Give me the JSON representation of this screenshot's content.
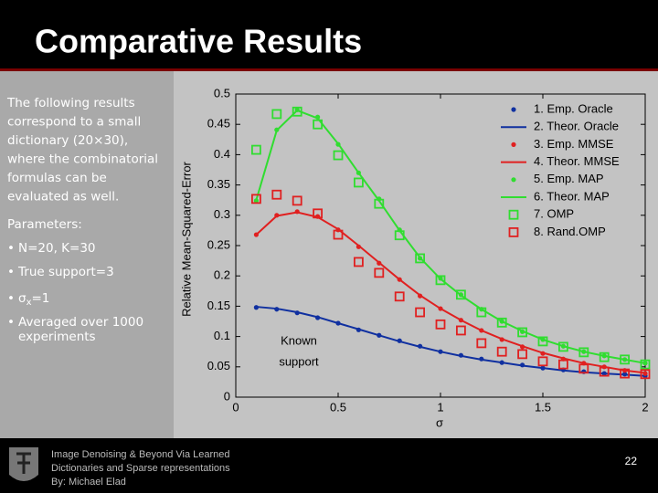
{
  "header": {
    "title": "Comparative Results"
  },
  "intro": {
    "lines": [
      "The following results",
      "correspond to a small",
      "dictionary (20×30),",
      "where the combinatorial",
      "formulas can be",
      "evaluated as well."
    ]
  },
  "parameters": {
    "heading": "Parameters:",
    "bullet": "•",
    "items": [
      "N=20, K=30",
      "True support=3",
      {
        "base": "σ",
        "sub": "x",
        "tail": "=1"
      },
      [
        "Averaged over 1000",
        "experiments"
      ]
    ]
  },
  "footer": {
    "lines": [
      "Image Denoising & Beyond Via Learned",
      "Dictionaries and Sparse representations",
      "By: Michael Elad"
    ],
    "page": "22"
  },
  "chart_data": {
    "type": "line",
    "y_label": "Relative Mean-Squared-Error",
    "x_label": "σ",
    "annotation": {
      "lines": [
        "Known",
        "support"
      ],
      "color": "#1a3aa8"
    },
    "xlim": [
      0,
      2
    ],
    "xticks": [
      0,
      0.5,
      1,
      1.5,
      2
    ],
    "ylim": [
      0,
      0.5
    ],
    "yticks": [
      0,
      0.05,
      0.1,
      0.15,
      0.2,
      0.25,
      0.3,
      0.35,
      0.4,
      0.45,
      0.5
    ],
    "legend": "top-right",
    "x": [
      0.1,
      0.2,
      0.3,
      0.4,
      0.5,
      0.6,
      0.7,
      0.8,
      0.9,
      1.0,
      1.1,
      1.2,
      1.3,
      1.4,
      1.5,
      1.6,
      1.7,
      1.8,
      1.9,
      2.0
    ],
    "series": [
      {
        "name": "1. Emp. Oracle",
        "color": "#1030a0",
        "style": "dot",
        "values": [
          0.148,
          0.145,
          0.139,
          0.131,
          0.122,
          0.111,
          0.102,
          0.093,
          0.084,
          0.075,
          0.069,
          0.063,
          0.057,
          0.053,
          0.048,
          0.045,
          0.042,
          0.039,
          0.038,
          0.035
        ]
      },
      {
        "name": "2. Theor. Oracle",
        "color": "#1030a0",
        "style": "line",
        "values": [
          0.149,
          0.146,
          0.14,
          0.132,
          0.122,
          0.112,
          0.102,
          0.092,
          0.083,
          0.075,
          0.068,
          0.062,
          0.057,
          0.052,
          0.048,
          0.044,
          0.041,
          0.039,
          0.037,
          0.035
        ]
      },
      {
        "name": "3. Emp. MMSE",
        "color": "#e02020",
        "style": "dot",
        "values": [
          0.268,
          0.3,
          0.306,
          0.298,
          0.276,
          0.248,
          0.221,
          0.194,
          0.167,
          0.146,
          0.127,
          0.11,
          0.095,
          0.083,
          0.072,
          0.063,
          0.056,
          0.05,
          0.044,
          0.039
        ]
      },
      {
        "name": "4. Theor. MMSE",
        "color": "#e02020",
        "style": "line",
        "values": [
          0.268,
          0.299,
          0.305,
          0.297,
          0.277,
          0.25,
          0.222,
          0.194,
          0.168,
          0.146,
          0.127,
          0.11,
          0.096,
          0.084,
          0.073,
          0.064,
          0.056,
          0.05,
          0.044,
          0.04
        ]
      },
      {
        "name": "5. Emp. MAP",
        "color": "#30dd30",
        "style": "dot",
        "values": [
          0.324,
          0.441,
          0.474,
          0.462,
          0.417,
          0.37,
          0.327,
          0.276,
          0.229,
          0.196,
          0.169,
          0.145,
          0.125,
          0.108,
          0.095,
          0.084,
          0.075,
          0.068,
          0.062,
          0.056
        ]
      },
      {
        "name": "6. Theor. MAP",
        "color": "#30dd30",
        "style": "line",
        "values": [
          0.325,
          0.44,
          0.473,
          0.46,
          0.418,
          0.37,
          0.324,
          0.275,
          0.23,
          0.195,
          0.168,
          0.145,
          0.125,
          0.109,
          0.095,
          0.084,
          0.075,
          0.068,
          0.062,
          0.056
        ]
      },
      {
        "name": "7. OMP",
        "color": "#30dd30",
        "style": "square",
        "values": [
          0.408,
          0.467,
          0.471,
          0.45,
          0.399,
          0.354,
          0.319,
          0.267,
          0.229,
          0.193,
          0.169,
          0.14,
          0.123,
          0.107,
          0.092,
          0.083,
          0.074,
          0.066,
          0.062,
          0.054
        ]
      },
      {
        "name": "8. Rand.OMP",
        "color": "#e02020",
        "style": "square",
        "values": [
          0.327,
          0.334,
          0.324,
          0.303,
          0.268,
          0.223,
          0.205,
          0.166,
          0.14,
          0.12,
          0.11,
          0.089,
          0.075,
          0.071,
          0.059,
          0.054,
          0.047,
          0.042,
          0.039,
          0.038
        ]
      }
    ]
  }
}
